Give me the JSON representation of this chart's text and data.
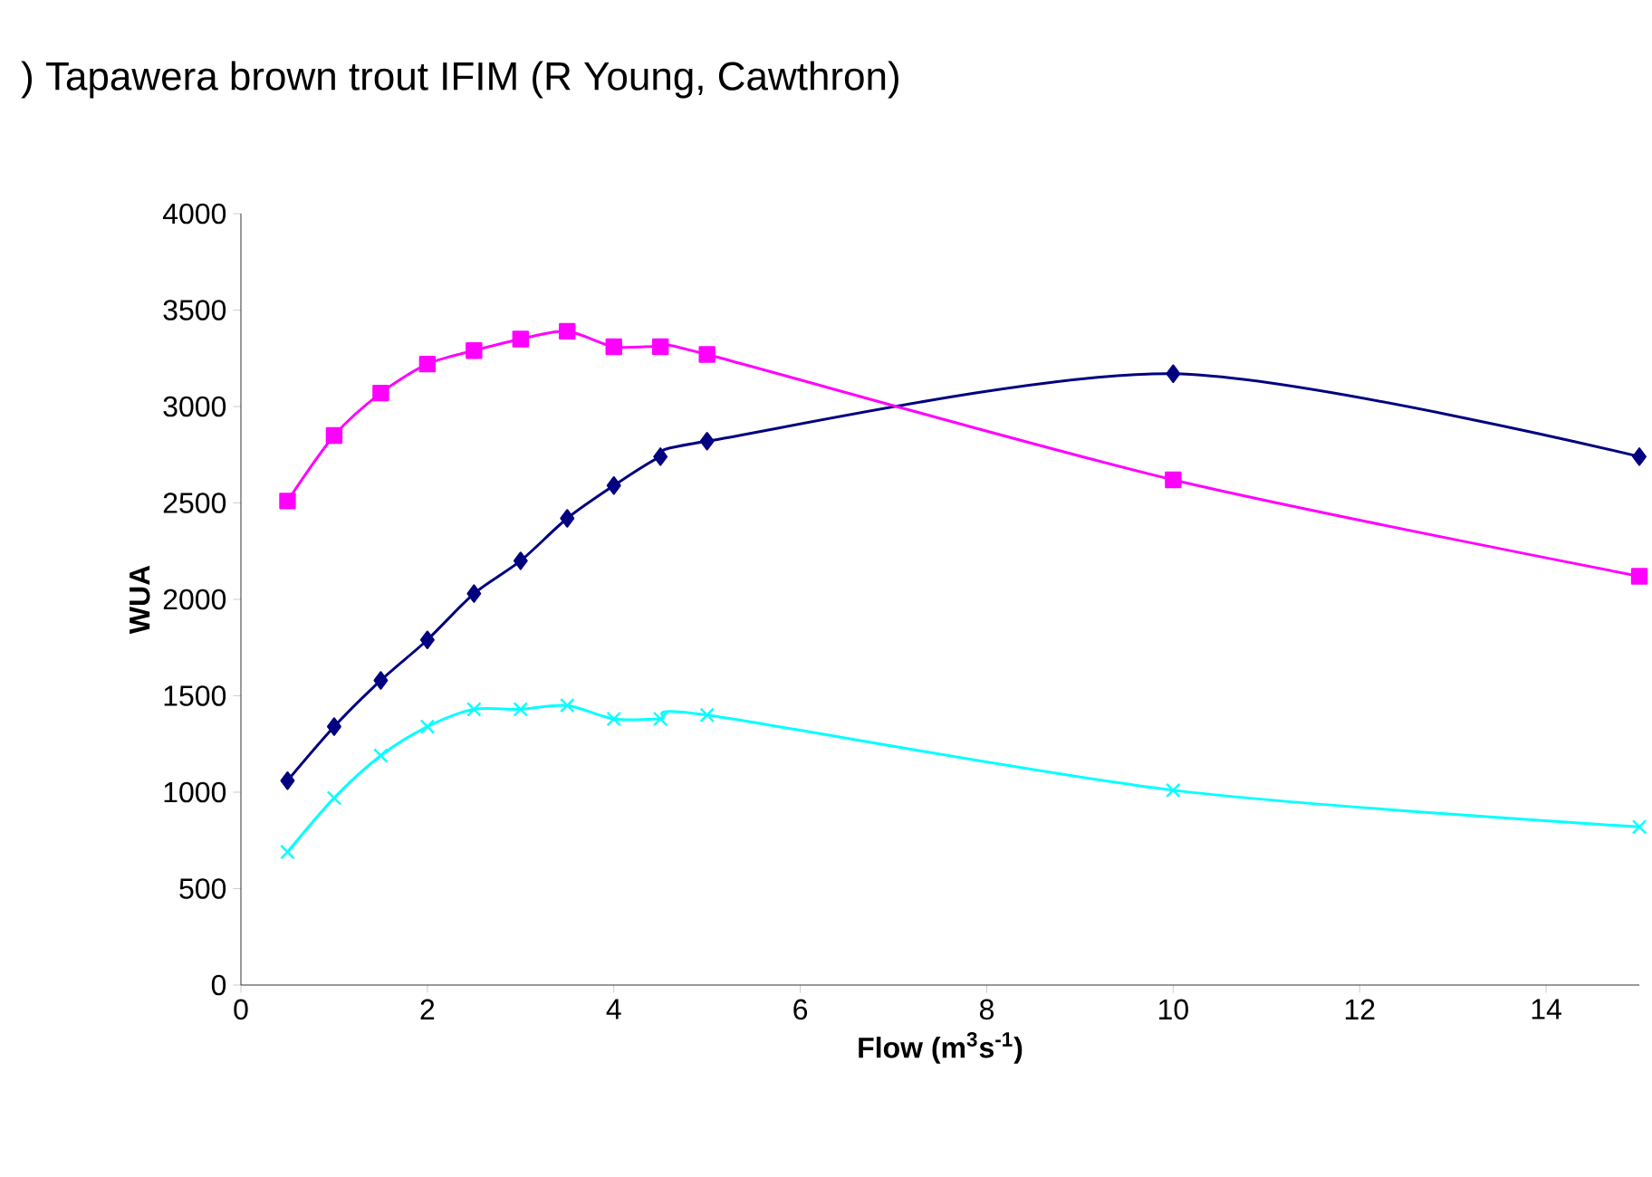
{
  "chart_data": {
    "type": "line",
    "title": ") Tapawera brown trout IFIM (R Young, Cawthron)",
    "xlabel": "Flow (m$^{3}$s$^{-1}$)",
    "ylabel": "WUA",
    "x": [
      0.5,
      1,
      1.5,
      2,
      2.5,
      3,
      3.5,
      4,
      4.5,
      5,
      10,
      15
    ],
    "series": [
      {
        "color": "#000080",
        "marker": "diamond",
        "values": [
          1060,
          1340,
          1580,
          1790,
          2030,
          2200,
          2420,
          2590,
          2740,
          2820,
          3170,
          2740
        ]
      },
      {
        "color": "#ff00ff",
        "marker": "square",
        "values": [
          2510,
          2850,
          3070,
          3220,
          3290,
          3350,
          3390,
          3310,
          3310,
          3270,
          2620,
          2120
        ]
      },
      {
        "color": "#00ffff",
        "marker": "cross",
        "values": [
          690,
          970,
          1190,
          1340,
          1430,
          1430,
          1450,
          1380,
          1380,
          1400,
          1010,
          820
        ]
      }
    ],
    "xlim": [
      0,
      15
    ],
    "ylim": [
      0,
      4000
    ],
    "xticks": [
      0,
      2,
      4,
      6,
      8,
      10,
      12,
      14
    ],
    "yticks": [
      0,
      500,
      1000,
      1500,
      2000,
      2500,
      3000,
      3500,
      4000
    ]
  }
}
